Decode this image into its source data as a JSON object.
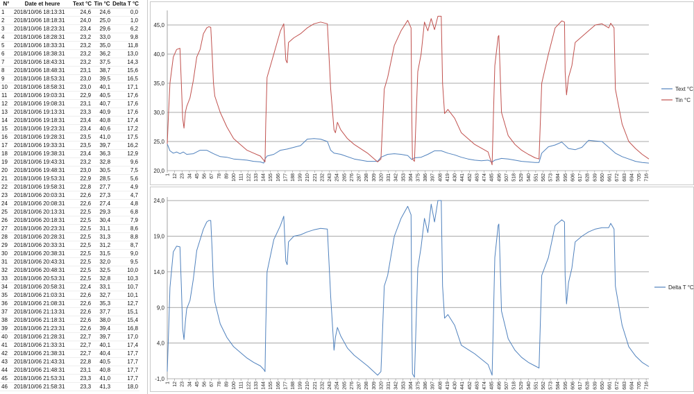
{
  "table": {
    "headers": [
      "N°",
      "Date et heure",
      "Text °C",
      "Tin °C",
      "Delta T °C"
    ],
    "rows": [
      [
        "1",
        "2018/10/06 18:13:31",
        "24,6",
        "24,6",
        "0,0"
      ],
      [
        "2",
        "2018/10/06 18:18:31",
        "24,0",
        "25,0",
        "1,0"
      ],
      [
        "3",
        "2018/10/06 18:23:31",
        "23,4",
        "29,6",
        "6,2"
      ],
      [
        "4",
        "2018/10/06 18:28:31",
        "23,2",
        "33,0",
        "9,8"
      ],
      [
        "5",
        "2018/10/06 18:33:31",
        "23,2",
        "35,0",
        "11,8"
      ],
      [
        "6",
        "2018/10/06 18:38:31",
        "23,2",
        "36,2",
        "13,0"
      ],
      [
        "7",
        "2018/10/06 18:43:31",
        "23,2",
        "37,5",
        "14,3"
      ],
      [
        "8",
        "2018/10/06 18:48:31",
        "23,1",
        "38,7",
        "15,6"
      ],
      [
        "9",
        "2018/10/06 18:53:31",
        "23,0",
        "39,5",
        "16,5"
      ],
      [
        "10",
        "2018/10/06 18:58:31",
        "23,0",
        "40,1",
        "17,1"
      ],
      [
        "11",
        "2018/10/06 19:03:31",
        "22,9",
        "40,5",
        "17,6"
      ],
      [
        "12",
        "2018/10/06 19:08:31",
        "23,1",
        "40,7",
        "17,6"
      ],
      [
        "13",
        "2018/10/06 19:13:31",
        "23,3",
        "40,9",
        "17,6"
      ],
      [
        "14",
        "2018/10/06 19:18:31",
        "23,4",
        "40,8",
        "17,4"
      ],
      [
        "15",
        "2018/10/06 19:23:31",
        "23,4",
        "40,6",
        "17,2"
      ],
      [
        "16",
        "2018/10/06 19:28:31",
        "23,5",
        "41,0",
        "17,5"
      ],
      [
        "17",
        "2018/10/06 19:33:31",
        "23,5",
        "39,7",
        "16,2"
      ],
      [
        "18",
        "2018/10/06 19:38:31",
        "23,4",
        "36,3",
        "12,9"
      ],
      [
        "19",
        "2018/10/06 19:43:31",
        "23,2",
        "32,8",
        "9,6"
      ],
      [
        "20",
        "2018/10/06 19:48:31",
        "23,0",
        "30,5",
        "7,5"
      ],
      [
        "21",
        "2018/10/06 19:53:31",
        "22,9",
        "28,5",
        "5,6"
      ],
      [
        "22",
        "2018/10/06 19:58:31",
        "22,8",
        "27,7",
        "4,9"
      ],
      [
        "23",
        "2018/10/06 20:03:31",
        "22,6",
        "27,3",
        "4,7"
      ],
      [
        "24",
        "2018/10/06 20:08:31",
        "22,6",
        "27,4",
        "4,8"
      ],
      [
        "25",
        "2018/10/06 20:13:31",
        "22,5",
        "29,3",
        "6,8"
      ],
      [
        "26",
        "2018/10/06 20:18:31",
        "22,5",
        "30,4",
        "7,9"
      ],
      [
        "27",
        "2018/10/06 20:23:31",
        "22,5",
        "31,1",
        "8,6"
      ],
      [
        "28",
        "2018/10/06 20:28:31",
        "22,5",
        "31,3",
        "8,8"
      ],
      [
        "29",
        "2018/10/06 20:33:31",
        "22,5",
        "31,2",
        "8,7"
      ],
      [
        "30",
        "2018/10/06 20:38:31",
        "22,5",
        "31,5",
        "9,0"
      ],
      [
        "31",
        "2018/10/06 20:43:31",
        "22,5",
        "32,0",
        "9,5"
      ],
      [
        "32",
        "2018/10/06 20:48:31",
        "22,5",
        "32,5",
        "10,0"
      ],
      [
        "33",
        "2018/10/06 20:53:31",
        "22,5",
        "32,8",
        "10,3"
      ],
      [
        "34",
        "2018/10/06 20:58:31",
        "22,4",
        "33,1",
        "10,7"
      ],
      [
        "35",
        "2018/10/06 21:03:31",
        "22,6",
        "32,7",
        "10,1"
      ],
      [
        "36",
        "2018/10/06 21:08:31",
        "22,6",
        "35,3",
        "12,7"
      ],
      [
        "37",
        "2018/10/06 21:13:31",
        "22,6",
        "37,7",
        "15,1"
      ],
      [
        "38",
        "2018/10/06 21:18:31",
        "22,6",
        "38,0",
        "15,4"
      ],
      [
        "39",
        "2018/10/06 21:23:31",
        "22,6",
        "39,4",
        "16,8"
      ],
      [
        "40",
        "2018/10/06 21:28:31",
        "22,7",
        "39,7",
        "17,0"
      ],
      [
        "41",
        "2018/10/06 21:33:31",
        "22,7",
        "40,1",
        "17,4"
      ],
      [
        "42",
        "2018/10/06 21:38:31",
        "22,7",
        "40,4",
        "17,7"
      ],
      [
        "43",
        "2018/10/06 21:43:31",
        "22,8",
        "40,5",
        "17,7"
      ],
      [
        "44",
        "2018/10/06 21:48:31",
        "23,1",
        "40,8",
        "17,7"
      ],
      [
        "45",
        "2018/10/06 21:53:31",
        "23,3",
        "41,0",
        "17,7"
      ],
      [
        "46",
        "2018/10/06 21:58:31",
        "23,3",
        "41,3",
        "18,0"
      ]
    ]
  },
  "chart_data": [
    {
      "type": "line",
      "x_tick_labels": [
        "1",
        "12",
        "23",
        "34",
        "45",
        "56",
        "67",
        "78",
        "89",
        "100",
        "111",
        "122",
        "133",
        "144",
        "155",
        "166",
        "177",
        "188",
        "199",
        "210",
        "221",
        "232",
        "243",
        "254",
        "265",
        "276",
        "287",
        "298",
        "309",
        "320",
        "331",
        "342",
        "353",
        "364",
        "375",
        "386",
        "397",
        "408",
        "419",
        "430",
        "441",
        "452",
        "463",
        "474",
        "485",
        "496",
        "507",
        "518",
        "529",
        "540",
        "551",
        "562",
        "573",
        "584",
        "595",
        "606",
        "617",
        "628",
        "639",
        "650",
        "661",
        "672",
        "683",
        "694",
        "705",
        "716"
      ],
      "ylim": [
        20,
        47.5
      ],
      "y_tick_labels": [
        "20,0",
        "25,0",
        "30,0",
        "35,0",
        "40,0",
        "45,0"
      ],
      "y_ticks": [
        20,
        25,
        30,
        35,
        40,
        45
      ],
      "grid": "horizontal",
      "legend_position": "right",
      "series": [
        {
          "name": "Text °C",
          "color": "#4f81bd",
          "x": [
            1,
            5,
            10,
            15,
            20,
            25,
            30,
            40,
            50,
            60,
            70,
            80,
            90,
            100,
            110,
            120,
            130,
            140,
            145,
            147,
            150,
            160,
            170,
            180,
            190,
            200,
            210,
            220,
            230,
            240,
            245,
            250,
            260,
            280,
            300,
            315,
            320,
            330,
            340,
            350,
            360,
            366,
            370,
            380,
            390,
            400,
            410,
            420,
            430,
            440,
            450,
            460,
            470,
            480,
            486,
            490,
            500,
            510,
            520,
            530,
            540,
            550,
            556,
            560,
            570,
            580,
            590,
            600,
            610,
            620,
            630,
            640,
            650,
            655,
            660,
            670,
            680,
            690,
            700,
            710,
            720
          ],
          "y": [
            24.6,
            23.4,
            23.0,
            23.2,
            22.9,
            23.2,
            22.8,
            22.9,
            23.5,
            23.5,
            22.9,
            22.4,
            22.3,
            22.0,
            21.9,
            21.8,
            21.6,
            21.5,
            21.3,
            22.0,
            22.5,
            22.8,
            23.5,
            23.7,
            24.0,
            24.3,
            25.4,
            25.5,
            25.4,
            25.0,
            23.5,
            23.0,
            22.8,
            22.0,
            21.6,
            21.6,
            22.3,
            22.8,
            22.9,
            22.8,
            22.6,
            21.9,
            22.2,
            22.3,
            22.8,
            23.4,
            23.4,
            23.0,
            22.7,
            22.3,
            22.0,
            21.8,
            21.7,
            21.8,
            21.5,
            21.8,
            22.1,
            22.0,
            21.8,
            21.6,
            21.5,
            21.4,
            21.4,
            23.0,
            24.1,
            24.4,
            24.9,
            23.8,
            23.6,
            24.0,
            25.2,
            25.1,
            25.0,
            24.5,
            24.0,
            23.0,
            22.4,
            22.0,
            21.6,
            21.4,
            21.3
          ]
        },
        {
          "name": "Tin °C",
          "color": "#c0504d",
          "x": [
            1,
            3,
            5,
            10,
            15,
            20,
            22,
            24,
            26,
            28,
            30,
            35,
            40,
            45,
            50,
            55,
            60,
            63,
            66,
            68,
            70,
            72,
            80,
            90,
            100,
            110,
            120,
            130,
            140,
            145,
            147,
            148,
            150,
            160,
            170,
            175,
            178,
            180,
            182,
            190,
            200,
            210,
            220,
            230,
            240,
            245,
            250,
            252,
            255,
            260,
            270,
            280,
            300,
            315,
            320,
            325,
            330,
            340,
            350,
            360,
            365,
            366,
            367,
            370,
            375,
            380,
            385,
            390,
            395,
            400,
            405,
            410,
            412,
            415,
            420,
            430,
            440,
            460,
            480,
            486,
            488,
            490,
            495,
            496,
            497,
            500,
            510,
            520,
            530,
            540,
            550,
            556,
            560,
            570,
            580,
            590,
            594,
            595,
            597,
            600,
            605,
            610,
            620,
            630,
            640,
            650,
            660,
            663,
            668,
            670,
            680,
            690,
            700,
            710,
            720
          ],
          "y": [
            24.6,
            30.0,
            35.0,
            39.5,
            40.8,
            41.0,
            35.0,
            29.0,
            27.3,
            30.0,
            31.0,
            32.5,
            35.5,
            39.5,
            40.8,
            43.5,
            44.5,
            44.7,
            44.6,
            40.0,
            35.0,
            32.8,
            30.0,
            27.5,
            25.5,
            24.5,
            23.5,
            23.0,
            22.5,
            21.8,
            21.5,
            28.0,
            36.0,
            40.0,
            44.0,
            45.2,
            39.0,
            38.5,
            42.0,
            42.8,
            43.5,
            44.5,
            45.2,
            45.5,
            45.2,
            34.0,
            27.0,
            26.5,
            28.3,
            27.0,
            25.5,
            24.5,
            23.0,
            21.5,
            22.0,
            34.0,
            36.0,
            41.5,
            44.0,
            45.8,
            44.5,
            30.0,
            22.0,
            21.6,
            37.0,
            40.0,
            45.5,
            44.0,
            46.1,
            44.2,
            46.5,
            46.5,
            35.0,
            29.8,
            30.5,
            29.0,
            26.5,
            24.5,
            23.2,
            21.0,
            30.0,
            38.0,
            43.0,
            43.2,
            40.0,
            30.0,
            26.0,
            24.5,
            23.5,
            22.8,
            22.2,
            22.0,
            35.0,
            40.0,
            44.5,
            45.7,
            45.5,
            37.0,
            33.0,
            36.0,
            38.0,
            42.0,
            43.0,
            44.0,
            45.0,
            45.2,
            44.5,
            45.3,
            44.5,
            34.0,
            28.0,
            25.0,
            23.8,
            22.8,
            22.0
          ]
        }
      ]
    },
    {
      "type": "line",
      "x_tick_labels": [
        "1",
        "12",
        "23",
        "34",
        "45",
        "56",
        "67",
        "78",
        "89",
        "100",
        "111",
        "122",
        "133",
        "144",
        "155",
        "166",
        "177",
        "188",
        "199",
        "210",
        "221",
        "232",
        "243",
        "254",
        "265",
        "276",
        "287",
        "298",
        "309",
        "320",
        "331",
        "342",
        "353",
        "364",
        "375",
        "386",
        "397",
        "408",
        "419",
        "430",
        "441",
        "452",
        "463",
        "474",
        "485",
        "496",
        "507",
        "518",
        "529",
        "540",
        "551",
        "562",
        "573",
        "584",
        "595",
        "606",
        "617",
        "628",
        "639",
        "650",
        "661",
        "672",
        "683",
        "694",
        "705",
        "716"
      ],
      "ylim": [
        -1,
        24.5
      ],
      "y_tick_labels": [
        "-1,0",
        "4,0",
        "9,0",
        "14,0",
        "19,0",
        "24,0"
      ],
      "y_ticks": [
        -1,
        4,
        9,
        14,
        19,
        24
      ],
      "grid": "horizontal",
      "legend_position": "right",
      "series": [
        {
          "name": "Delta T °C",
          "color": "#4f81bd",
          "x": [
            1,
            3,
            5,
            10,
            15,
            20,
            22,
            24,
            26,
            28,
            30,
            35,
            40,
            45,
            50,
            55,
            60,
            63,
            66,
            68,
            70,
            72,
            80,
            90,
            100,
            110,
            120,
            130,
            140,
            145,
            147,
            148,
            150,
            160,
            170,
            175,
            178,
            180,
            182,
            190,
            200,
            210,
            220,
            230,
            240,
            245,
            250,
            252,
            255,
            260,
            270,
            280,
            300,
            315,
            320,
            325,
            330,
            340,
            350,
            360,
            365,
            366,
            367,
            370,
            375,
            380,
            385,
            390,
            395,
            400,
            405,
            410,
            412,
            415,
            420,
            430,
            440,
            460,
            480,
            486,
            488,
            490,
            495,
            496,
            497,
            500,
            510,
            520,
            530,
            540,
            550,
            556,
            560,
            570,
            580,
            590,
            594,
            595,
            597,
            600,
            605,
            610,
            620,
            630,
            640,
            650,
            660,
            663,
            668,
            670,
            680,
            690,
            700,
            710,
            720
          ],
          "y": [
            0.0,
            5.5,
            11.8,
            16.8,
            17.6,
            17.5,
            12.0,
            6.0,
            4.5,
            7.0,
            8.8,
            10.0,
            13.0,
            17.0,
            18.5,
            20.0,
            21.0,
            21.2,
            21.2,
            17.0,
            12.0,
            9.8,
            6.7,
            4.8,
            3.5,
            2.7,
            1.9,
            1.3,
            0.8,
            0.3,
            0.0,
            6.0,
            14.0,
            18.5,
            20.5,
            21.8,
            15.5,
            15.0,
            18.2,
            19.0,
            19.2,
            19.6,
            19.9,
            20.1,
            20.0,
            10.5,
            3.0,
            4.8,
            6.2,
            5.0,
            3.3,
            2.3,
            0.8,
            -0.5,
            0.0,
            12.0,
            13.5,
            19.0,
            21.5,
            23.2,
            22.0,
            7.5,
            -0.3,
            -0.8,
            14.5,
            17.5,
            21.5,
            19.5,
            23.5,
            21.0,
            24.0,
            24.0,
            12.0,
            7.5,
            8.0,
            6.5,
            3.7,
            2.5,
            1.0,
            -0.5,
            8.0,
            16.0,
            20.5,
            20.7,
            18.0,
            8.5,
            4.6,
            3.0,
            2.0,
            1.3,
            0.8,
            0.5,
            13.5,
            16.0,
            20.5,
            21.3,
            21.0,
            13.5,
            9.5,
            12.5,
            14.5,
            18.2,
            19.0,
            19.6,
            20.0,
            20.2,
            20.2,
            20.8,
            20.0,
            12.0,
            6.5,
            3.5,
            2.2,
            1.3,
            0.7
          ]
        }
      ]
    }
  ]
}
